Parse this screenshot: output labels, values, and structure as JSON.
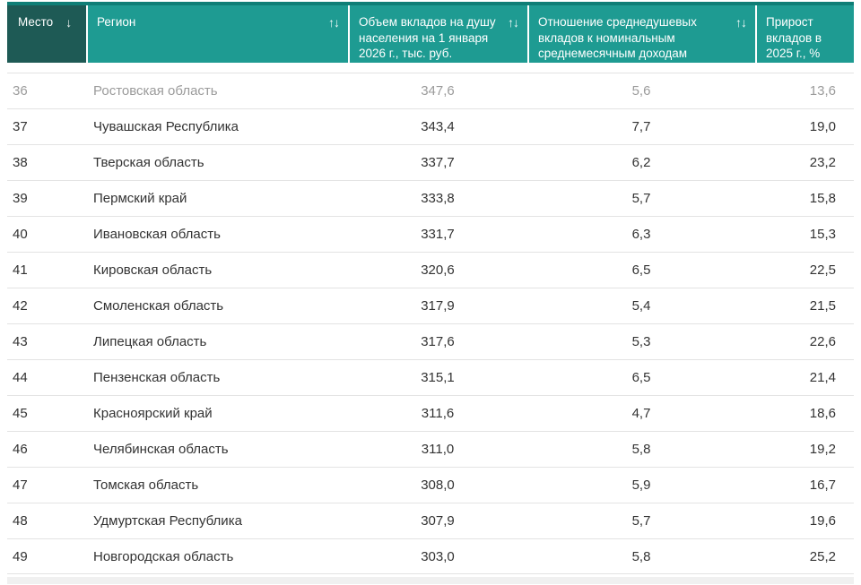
{
  "colors": {
    "header_teal": "#1E9B92",
    "header_dark": "#1E5A55",
    "header_top_border": "#0F7E76",
    "header_text": "#FFFFFF",
    "divider": "#E3E3E3",
    "text_dark": "#333333",
    "text_muted": "#9B9B9B",
    "bottom_strip": "#F0F0F0"
  },
  "icons": {
    "sort_desc": "↓",
    "sort_pair": "↑↓"
  },
  "table": {
    "columns": [
      {
        "key": "place",
        "label": "Место",
        "sort_state": "sorted-desc"
      },
      {
        "key": "region",
        "label": "Регион",
        "sort_state": "sortable"
      },
      {
        "key": "volume",
        "label": "Объем вкладов на душу населения на 1 января 2026 г., тыс. руб.",
        "sort_state": "sortable"
      },
      {
        "key": "ratio",
        "label": "Отношение среднедушевых вкладов к номинальным среднемесячным доходам",
        "sort_state": "sortable"
      },
      {
        "key": "growth",
        "label": "Прирост вкладов в 2025 г., %",
        "sort_state": "none"
      }
    ],
    "rows": [
      {
        "place": "36",
        "region": "Ростовская область",
        "volume": "347,6",
        "ratio": "5,6",
        "growth": "13,6",
        "muted": true
      },
      {
        "place": "37",
        "region": "Чувашская Республика",
        "volume": "343,4",
        "ratio": "7,7",
        "growth": "19,0",
        "muted": false
      },
      {
        "place": "38",
        "region": "Тверская область",
        "volume": "337,7",
        "ratio": "6,2",
        "growth": "23,2",
        "muted": false
      },
      {
        "place": "39",
        "region": "Пермский край",
        "volume": "333,8",
        "ratio": "5,7",
        "growth": "15,8",
        "muted": false
      },
      {
        "place": "40",
        "region": "Ивановская область",
        "volume": "331,7",
        "ratio": "6,3",
        "growth": "15,3",
        "muted": false
      },
      {
        "place": "41",
        "region": "Кировская область",
        "volume": "320,6",
        "ratio": "6,5",
        "growth": "22,5",
        "muted": false
      },
      {
        "place": "42",
        "region": "Смоленская область",
        "volume": "317,9",
        "ratio": "5,4",
        "growth": "21,5",
        "muted": false
      },
      {
        "place": "43",
        "region": "Липецкая область",
        "volume": "317,6",
        "ratio": "5,3",
        "growth": "22,6",
        "muted": false
      },
      {
        "place": "44",
        "region": "Пензенская область",
        "volume": "315,1",
        "ratio": "6,5",
        "growth": "21,4",
        "muted": false
      },
      {
        "place": "45",
        "region": "Красноярский край",
        "volume": "311,6",
        "ratio": "4,7",
        "growth": "18,6",
        "muted": false
      },
      {
        "place": "46",
        "region": "Челябинская область",
        "volume": "311,0",
        "ratio": "5,8",
        "growth": "19,2",
        "muted": false
      },
      {
        "place": "47",
        "region": "Томская область",
        "volume": "308,0",
        "ratio": "5,9",
        "growth": "16,7",
        "muted": false
      },
      {
        "place": "48",
        "region": "Удмуртская Республика",
        "volume": "307,9",
        "ratio": "5,7",
        "growth": "19,6",
        "muted": false
      },
      {
        "place": "49",
        "region": "Новгородская область",
        "volume": "303,0",
        "ratio": "5,8",
        "growth": "25,2",
        "muted": false
      }
    ]
  }
}
